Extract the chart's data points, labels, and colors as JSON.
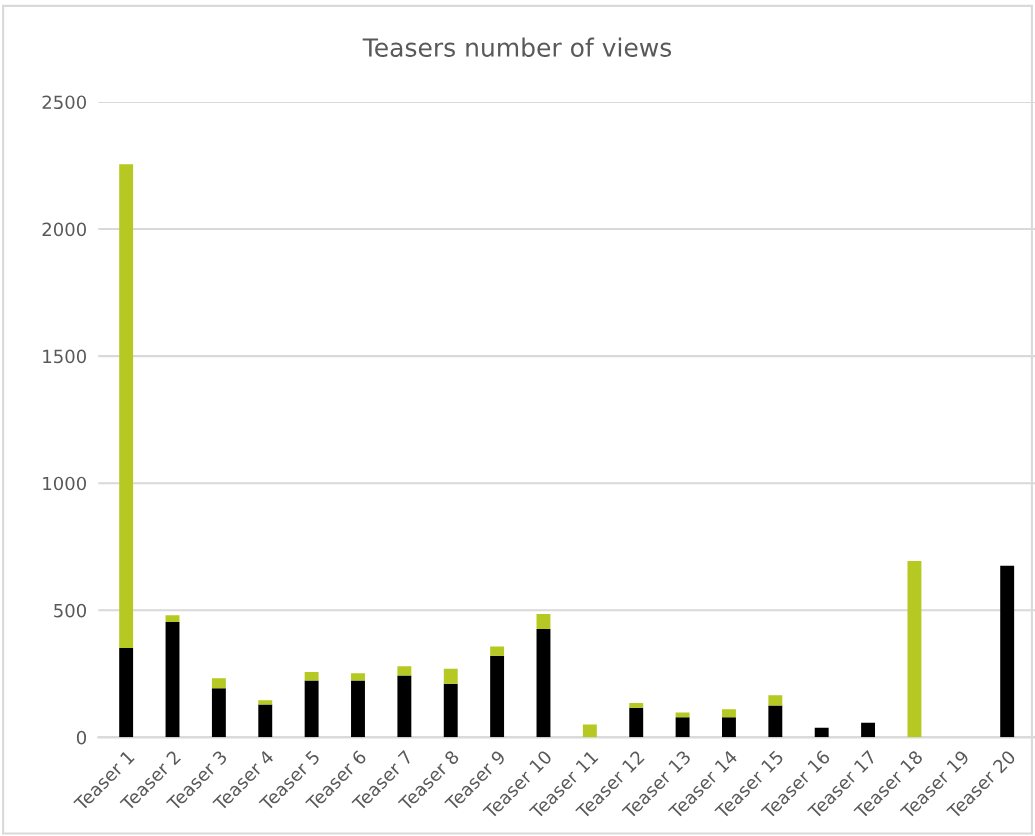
{
  "chart_data": {
    "type": "bar",
    "title": "Teasers number of views",
    "stacked": true,
    "categories": [
      "Teaser 1",
      "Teaser 2",
      "Teaser 3",
      "Teaser 4",
      "Teaser 5",
      "Teaser 6",
      "Teaser 7",
      "Teaser 8",
      "Teaser 9",
      "Teaser 10",
      "Teaser 11",
      "Teaser 12",
      "Teaser 13",
      "Teaser 14",
      "Teaser 15",
      "Teaser 16",
      "Teaser 17",
      "Teaser 18",
      "Teaser 19",
      "Teaser 20"
    ],
    "series": [
      {
        "color": "#000000",
        "values": [
          352,
          454,
          193,
          129,
          224,
          224,
          243,
          211,
          321,
          426,
          0,
          116,
          79,
          79,
          125,
          38,
          57,
          0,
          0,
          675
        ]
      },
      {
        "color": "#b5c922",
        "values": [
          1903,
          26,
          40,
          17,
          33,
          28,
          37,
          59,
          36,
          59,
          51,
          19,
          19,
          32,
          41,
          0,
          0,
          694,
          0,
          0
        ]
      }
    ],
    "ylim": [
      0,
      2500
    ],
    "yticks": [
      0,
      500,
      1000,
      1500,
      2000,
      2500
    ],
    "grid": "y"
  }
}
